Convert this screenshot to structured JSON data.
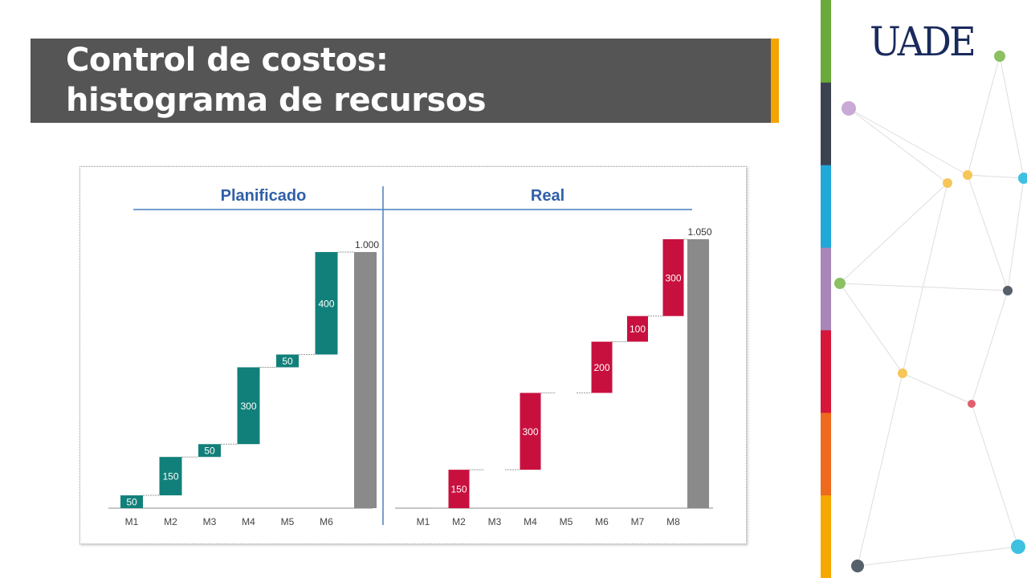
{
  "slide": {
    "title_line1": "Control de costos:",
    "title_line2": "histograma de recursos",
    "logo": "UADE",
    "colors": {
      "banner": "#555555",
      "accent": "#f5a300",
      "planned": "#12807a",
      "real": "#c8103e",
      "total": "#8a8a8a",
      "header_line": "#4a7ebd",
      "header_text": "#2f5fa8"
    },
    "stripe_colors": [
      "#6aaa3a",
      "#3c4350",
      "#1fa8d8",
      "#a986b8",
      "#d6163a",
      "#ee6a1e",
      "#f5a800"
    ]
  },
  "chart_data": [
    {
      "type": "waterfall",
      "title": "Planificado",
      "categories": [
        "M1",
        "M2",
        "M3",
        "M4",
        "M5",
        "M6"
      ],
      "values": [
        50,
        150,
        50,
        300,
        50,
        400
      ],
      "value_labels": [
        "50",
        "150",
        "50",
        "300",
        "50",
        "400"
      ],
      "total": 1000,
      "total_label": "1.000",
      "ylim": [
        0,
        1050
      ]
    },
    {
      "type": "waterfall",
      "title": "Real",
      "categories": [
        "M1",
        "M2",
        "M3",
        "M4",
        "M5",
        "M6",
        "M7",
        "M8"
      ],
      "values": [
        0,
        150,
        0,
        300,
        0,
        200,
        100,
        300
      ],
      "value_labels": [
        "",
        "150",
        "",
        "300",
        "",
        "200",
        "100",
        "300"
      ],
      "total": 1050,
      "total_label": "1.050",
      "ylim": [
        0,
        1050
      ]
    }
  ]
}
